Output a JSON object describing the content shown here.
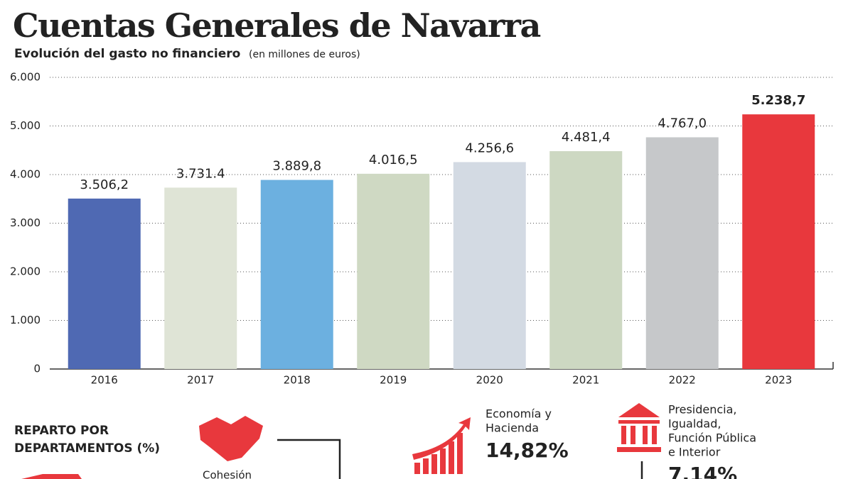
{
  "chart_data": {
    "type": "bar",
    "title": "Cuentas Generales de Navarra",
    "subtitle": "Evolución del gasto no financiero",
    "unit": "(en millones de euros)",
    "categories": [
      "2016",
      "2017",
      "2018",
      "2019",
      "2020",
      "2021",
      "2022",
      "2023"
    ],
    "values": [
      3506.2,
      3731.4,
      3889.8,
      4016.5,
      4256.6,
      4481.4,
      4767.0,
      5238.7
    ],
    "value_labels": [
      "3.506,2",
      "3.731.4",
      "3.889,8",
      "4.016,5",
      "4.256,6",
      "4.481,4",
      "4.767,0",
      "5.238,7"
    ],
    "colors": [
      "#4f69b3",
      "#dfe4d6",
      "#6cb0e0",
      "#cfd9c3",
      "#d3dae3",
      "#cdd8c2",
      "#c6c8ca",
      "#e8383d"
    ],
    "ylim": [
      0,
      6000
    ],
    "yticks": [
      0,
      {
        "value": 1000,
        "label": "1.000"
      },
      {
        "value": 2000,
        "label": "2.000"
      },
      {
        "value": 3000,
        "label": "3.000"
      },
      {
        "value": 4000,
        "label": "4.000"
      },
      {
        "value": 5000,
        "label": "5.000"
      },
      {
        "value": 6000,
        "label": "6.000"
      }
    ],
    "grid": true
  },
  "departments": {
    "heading": [
      "REPARTO POR",
      "DEPARTAMENTOS (%)"
    ],
    "items": [
      {
        "label": [
          "Cohesión"
        ]
      },
      {
        "label": [
          "Economía y",
          "Hacienda"
        ],
        "value": "14,82%"
      },
      {
        "label": [
          "Presidencia,",
          "Igualdad,",
          "Función Pública",
          "e Interior"
        ],
        "value": "7,14%"
      }
    ]
  }
}
